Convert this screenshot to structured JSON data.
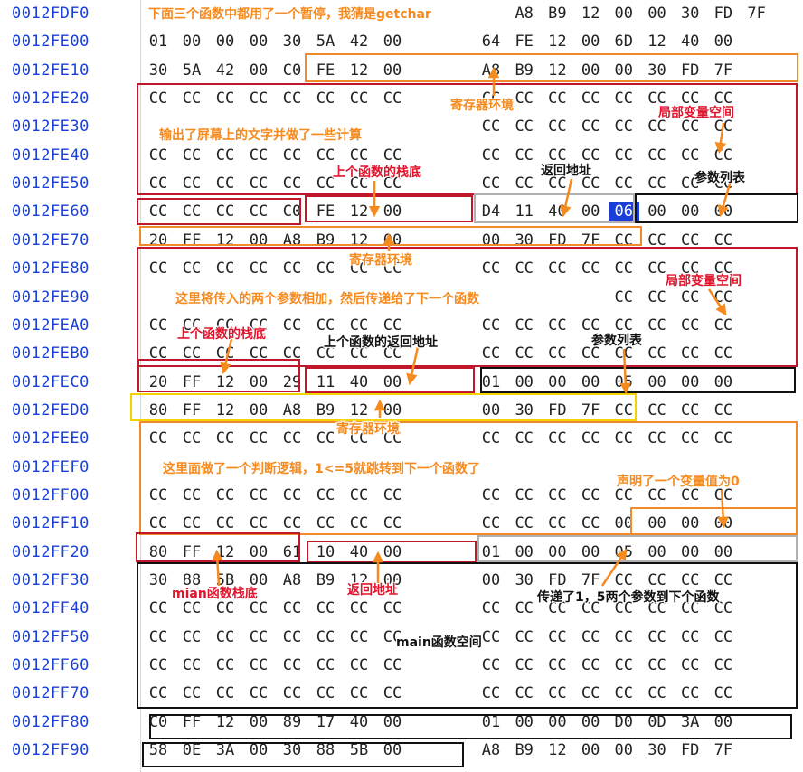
{
  "addresses": [
    "0012FDF0",
    "0012FE00",
    "0012FE10",
    "0012FE20",
    "0012FE30",
    "0012FE40",
    "0012FE50",
    "0012FE60",
    "0012FE70",
    "0012FE80",
    "0012FE90",
    "0012FEA0",
    "0012FEB0",
    "0012FEC0",
    "0012FED0",
    "0012FEE0",
    "0012FEF0",
    "0012FF00",
    "0012FF10",
    "0012FF20",
    "0012FF30",
    "0012FF40",
    "0012FF50",
    "0012FF60",
    "0012FF70",
    "0012FF80",
    "0012FF90"
  ],
  "rows": [
    [
      "",
      "",
      "",
      "",
      "",
      "",
      "",
      "",
      "",
      "",
      "A8",
      "B9",
      "12",
      "00",
      "00",
      "30",
      "FD",
      "7F"
    ],
    [
      "01",
      "00",
      "00",
      "00",
      "30",
      "5A",
      "42",
      "00",
      "",
      "64",
      "FE",
      "12",
      "00",
      "6D",
      "12",
      "40",
      "00"
    ],
    [
      "30",
      "5A",
      "42",
      "00",
      "C0",
      "FE",
      "12",
      "00",
      "",
      "A8",
      "B9",
      "12",
      "00",
      "00",
      "30",
      "FD",
      "7F"
    ],
    [
      "CC",
      "CC",
      "CC",
      "CC",
      "CC",
      "CC",
      "CC",
      "CC",
      "",
      "CC",
      "CC",
      "CC",
      "CC",
      "CC",
      "CC",
      "CC",
      "CC"
    ],
    [
      "",
      "",
      "",
      "",
      "",
      "",
      "",
      "",
      "",
      "CC",
      "CC",
      "CC",
      "CC",
      "CC",
      "CC",
      "CC",
      "CC"
    ],
    [
      "CC",
      "CC",
      "CC",
      "CC",
      "CC",
      "CC",
      "CC",
      "CC",
      "",
      "CC",
      "CC",
      "CC",
      "CC",
      "CC",
      "CC",
      "CC",
      "CC"
    ],
    [
      "CC",
      "CC",
      "CC",
      "CC",
      "CC",
      "CC",
      "CC",
      "CC",
      "",
      "CC",
      "CC",
      "CC",
      "CC",
      "CC",
      "CC",
      "CC",
      "CC"
    ],
    [
      "CC",
      "CC",
      "CC",
      "CC",
      "C0",
      "FE",
      "12",
      "00",
      "",
      "D4",
      "11",
      "40",
      "00",
      "06",
      "00",
      "00",
      "00"
    ],
    [
      "20",
      "FF",
      "12",
      "00",
      "A8",
      "B9",
      "12",
      "00",
      "",
      "00",
      "30",
      "FD",
      "7F",
      "CC",
      "CC",
      "CC",
      "CC"
    ],
    [
      "CC",
      "CC",
      "CC",
      "CC",
      "CC",
      "CC",
      "CC",
      "CC",
      "",
      "CC",
      "CC",
      "CC",
      "CC",
      "CC",
      "CC",
      "CC",
      "CC"
    ],
    [
      "",
      "",
      "",
      "",
      "",
      "",
      "",
      "",
      "",
      "",
      "",
      "",
      "",
      "CC",
      "CC",
      "CC",
      "CC"
    ],
    [
      "CC",
      "CC",
      "CC",
      "CC",
      "CC",
      "CC",
      "CC",
      "CC",
      "",
      "CC",
      "CC",
      "CC",
      "CC",
      "CC",
      "CC",
      "CC",
      "CC"
    ],
    [
      "CC",
      "CC",
      "CC",
      "CC",
      "CC",
      "CC",
      "CC",
      "CC",
      "",
      "CC",
      "CC",
      "CC",
      "CC",
      "CC",
      "CC",
      "CC",
      "CC"
    ],
    [
      "20",
      "FF",
      "12",
      "00",
      "29",
      "11",
      "40",
      "00",
      "",
      "01",
      "00",
      "00",
      "00",
      "05",
      "00",
      "00",
      "00"
    ],
    [
      "80",
      "FF",
      "12",
      "00",
      "A8",
      "B9",
      "12",
      "00",
      "",
      "00",
      "30",
      "FD",
      "7F",
      "CC",
      "CC",
      "CC",
      "CC"
    ],
    [
      "CC",
      "CC",
      "CC",
      "CC",
      "CC",
      "CC",
      "CC",
      "CC",
      "",
      "CC",
      "CC",
      "CC",
      "CC",
      "CC",
      "CC",
      "CC",
      "CC"
    ],
    [
      "",
      "",
      "",
      "",
      "",
      "",
      "",
      "",
      "",
      "",
      "",
      "",
      "",
      "",
      "",
      "",
      ""
    ],
    [
      "CC",
      "CC",
      "CC",
      "CC",
      "CC",
      "CC",
      "CC",
      "CC",
      "",
      "CC",
      "CC",
      "CC",
      "CC",
      "CC",
      "CC",
      "CC",
      "CC"
    ],
    [
      "CC",
      "CC",
      "CC",
      "CC",
      "CC",
      "CC",
      "CC",
      "CC",
      "",
      "CC",
      "CC",
      "CC",
      "CC",
      "00",
      "00",
      "00",
      "00"
    ],
    [
      "80",
      "FF",
      "12",
      "00",
      "61",
      "10",
      "40",
      "00",
      "",
      "01",
      "00",
      "00",
      "00",
      "05",
      "00",
      "00",
      "00"
    ],
    [
      "30",
      "88",
      "5B",
      "00",
      "A8",
      "B9",
      "12",
      "00",
      "",
      "00",
      "30",
      "FD",
      "7F",
      "CC",
      "CC",
      "CC",
      "CC"
    ],
    [
      "CC",
      "CC",
      "CC",
      "CC",
      "CC",
      "CC",
      "CC",
      "CC",
      "",
      "CC",
      "CC",
      "CC",
      "CC",
      "CC",
      "CC",
      "CC",
      "CC"
    ],
    [
      "CC",
      "CC",
      "CC",
      "CC",
      "CC",
      "CC",
      "CC",
      "CC",
      "",
      "CC",
      "CC",
      "CC",
      "CC",
      "CC",
      "CC",
      "CC",
      "CC"
    ],
    [
      "CC",
      "CC",
      "CC",
      "CC",
      "CC",
      "CC",
      "CC",
      "CC",
      "",
      "CC",
      "CC",
      "CC",
      "CC",
      "CC",
      "CC",
      "CC",
      "CC"
    ],
    [
      "CC",
      "CC",
      "CC",
      "CC",
      "CC",
      "CC",
      "CC",
      "CC",
      "",
      "CC",
      "CC",
      "CC",
      "CC",
      "CC",
      "CC",
      "CC",
      "CC"
    ],
    [
      "C0",
      "FF",
      "12",
      "00",
      "89",
      "17",
      "40",
      "00",
      "",
      "01",
      "00",
      "00",
      "00",
      "D0",
      "0D",
      "3A",
      "00"
    ],
    [
      "58",
      "0E",
      "3A",
      "00",
      "30",
      "88",
      "5B",
      "00",
      "",
      "A8",
      "B9",
      "12",
      "00",
      "00",
      "30",
      "FD",
      "7F"
    ]
  ],
  "annotations": {
    "a_getchar": "下面三个函数中都用了一个暂停，我猜是getchar",
    "a_reg1": "寄存器环境",
    "a_local1": "局部变量空间",
    "a_print": "输出了屏幕上的文字并做了一些计算",
    "a_ebp1": "上个函数的栈底",
    "a_ret1": "返回地址",
    "a_params1": "参数列表",
    "a_reg2": "寄存器环境",
    "a_local2": "局部变量空间",
    "a_add": "这里将传入的两个参数相加，然后传递给了下一个函数",
    "a_ebp2": "上个函数的栈底",
    "a_ret2": "上个函数的返回地址",
    "a_params2": "参数列表",
    "a_reg3": "寄存器环境",
    "a_judge": "这里面做了一个判断逻辑，1<=5就跳转到下一个函数了",
    "a_var0": "声明了一个变量值为0",
    "a_mainebp": "mian函数栈底",
    "a_ret3": "返回地址",
    "a_pass": "传递了1，5两个参数到下个函数",
    "a_mainspace": "main函数空间"
  }
}
